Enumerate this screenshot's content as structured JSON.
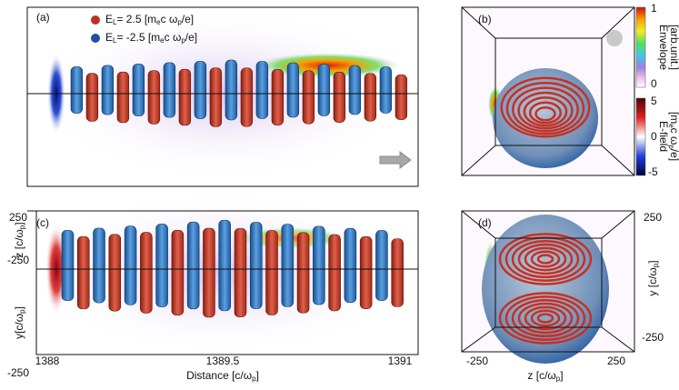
{
  "panels": [
    {
      "label": "(a)"
    },
    {
      "label": "(b)"
    },
    {
      "label": "(c)"
    },
    {
      "label": "(d)"
    }
  ],
  "legend": [
    {
      "segments": [
        "E",
        "L",
        "= 2.5 [m",
        "e",
        "c ω",
        "p",
        "/e]"
      ]
    },
    {
      "segments": [
        "E",
        "L",
        "= -2.5 [m",
        "e",
        "c ω",
        "p",
        "/e]"
      ]
    }
  ],
  "left_axes": {
    "x_label": [
      "Distance [c/ω",
      "p",
      "]"
    ],
    "x_ticks": [
      "1388",
      "1389.5",
      "1391"
    ],
    "z_label": [
      "z [c/ω",
      "p",
      "]"
    ],
    "z_ticks": [
      "250",
      "-250"
    ],
    "y_label": [
      "y[c/ω",
      "p",
      "]"
    ],
    "y_ticks": [
      "-250"
    ]
  },
  "right_axes": {
    "x_label": [
      "z [c/ω",
      "p",
      "]"
    ],
    "x_ticks": [
      "-250",
      "250"
    ],
    "y_label": [
      "y [c/ω",
      "p",
      "]"
    ],
    "y_ticks": [
      "250",
      "-250"
    ]
  },
  "colorbars": [
    {
      "title": "Envelope",
      "unit": [
        "[arb.unit.]"
      ],
      "ticks": [
        "1",
        "0"
      ]
    },
    {
      "title": "E-field",
      "unit": [
        "[m",
        "e",
        "c ω",
        "p",
        "/e]"
      ],
      "ticks": [
        "5",
        "0",
        "-5"
      ]
    }
  ]
}
